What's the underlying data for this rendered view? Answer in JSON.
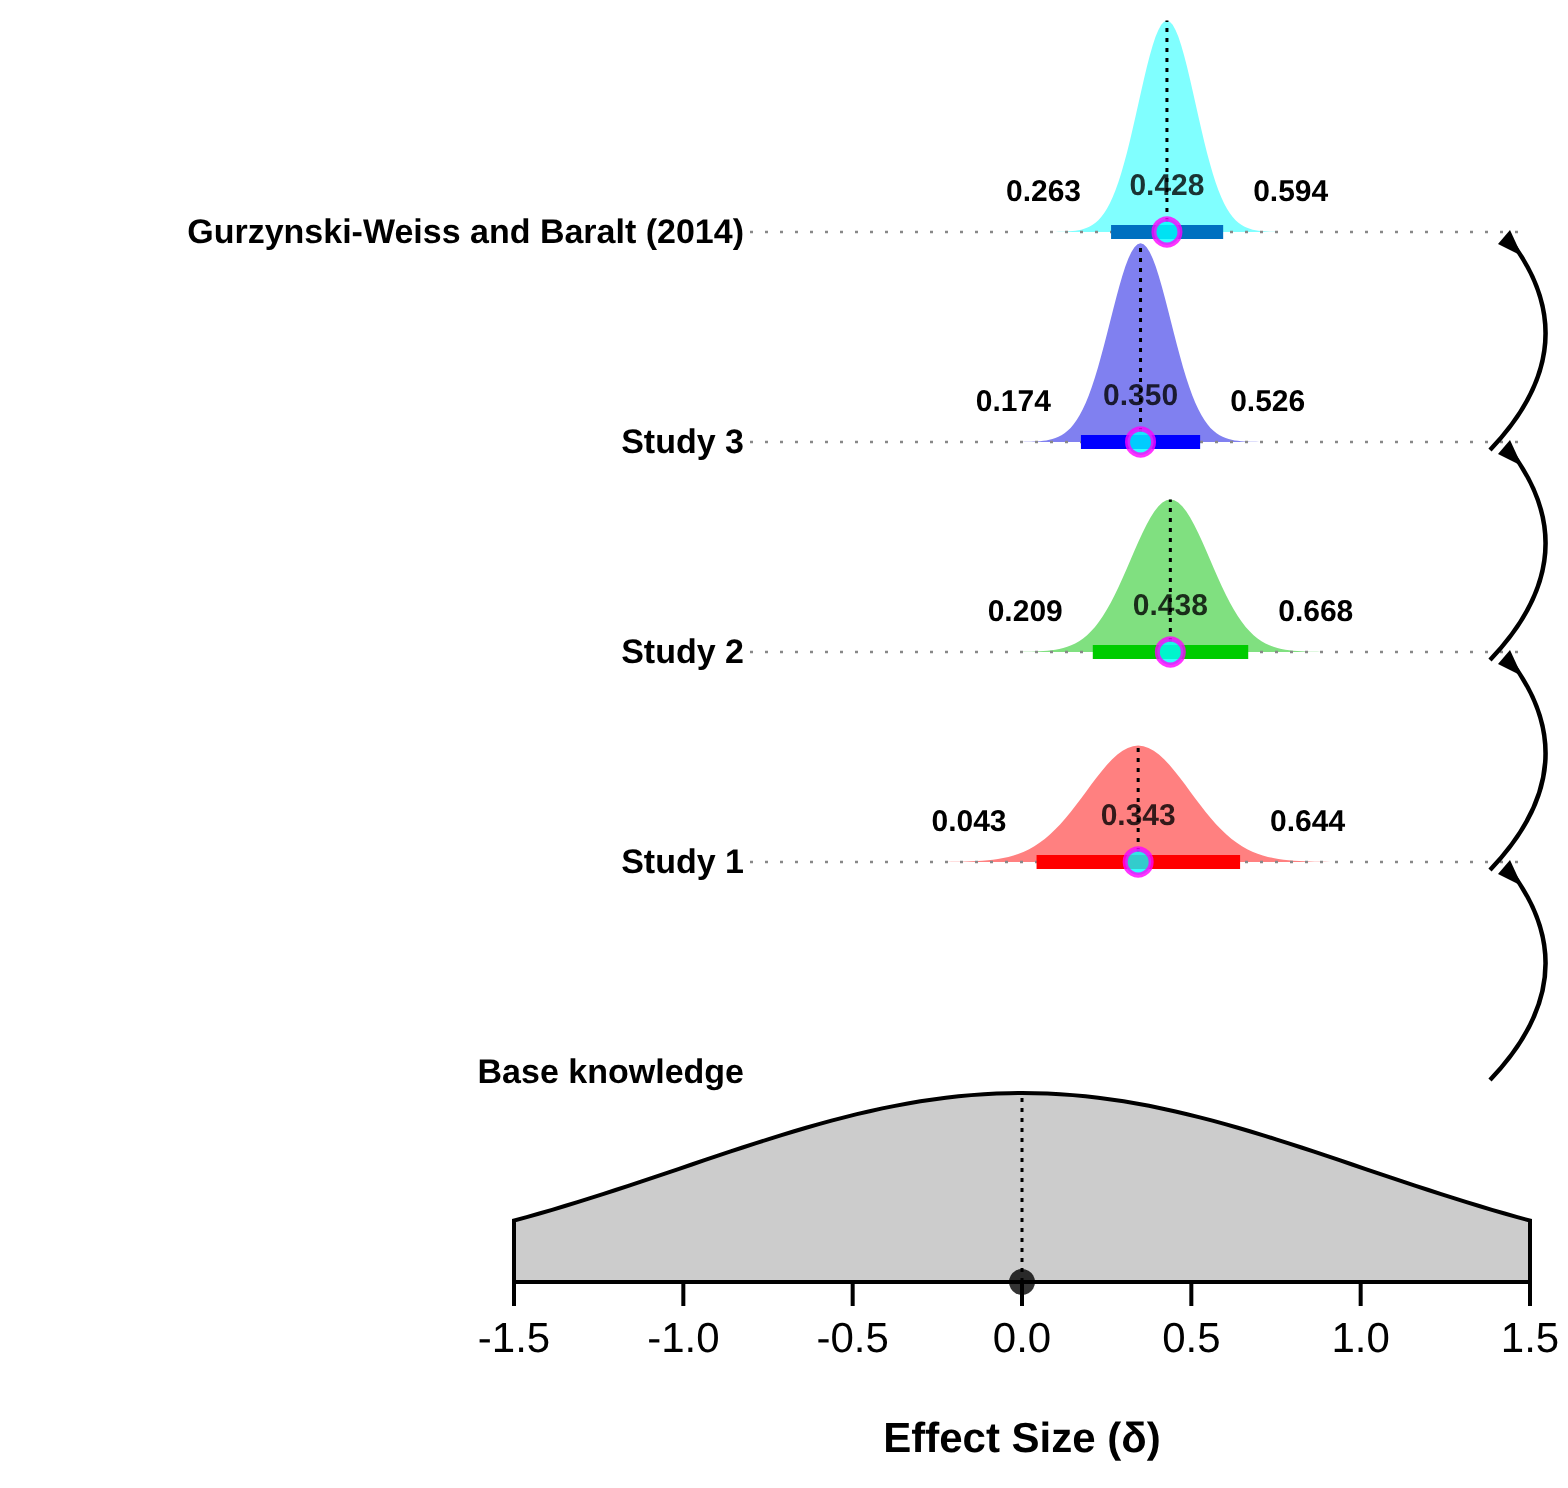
{
  "chart_data": {
    "type": "scatter",
    "orientation": "horizontal",
    "xlabel": "Effect Size (δ)",
    "grid": "y",
    "categories": [
      "Gurzynski-Weiss and Baralt (2014)",
      "Study 3",
      "Study 2",
      "Study 1",
      "Base knowledge",
      null
    ],
    "values": [
      0.428,
      0.35,
      0.438,
      0.343,
      null,
      0
    ],
    "errors": [
      [
        0.263,
        0.594
      ],
      [
        0.174,
        0.526
      ],
      [
        0.209,
        0.668
      ],
      [
        0.043,
        0.644
      ],
      null,
      null
    ],
    "colors": [
      "#00ffff",
      "#00ffff",
      "#00ffff",
      "#00ffff",
      null,
      "#000000"
    ],
    "value_labels": [
      "0.428",
      "0.350",
      "0.438",
      "0.343",
      null,
      null
    ],
    "xlim": [
      -1.5,
      1.5
    ],
    "xticks": [
      -1.5,
      {
        "value": -1.0,
        "label": "-1.0"
      },
      -0.5,
      {
        "value": 0,
        "label": "0.0"
      },
      0.5,
      {
        "value": 1.0,
        "label": "1.0"
      },
      1.5
    ],
    "annotations": [
      {
        "text": "0.263",
        "x": 0.263,
        "y": "Gurzynski-Weiss and Baralt (2014)"
      },
      {
        "text": "0.594",
        "x": 0.594,
        "y": "Gurzynski-Weiss and Baralt (2014)"
      },
      {
        "text": "0.174",
        "x": 0.174,
        "y": "Study 3"
      },
      {
        "text": "0.526",
        "x": 0.526,
        "y": "Study 3"
      },
      {
        "text": "0.209",
        "x": 0.209,
        "y": "Study 2"
      },
      {
        "text": "0.668",
        "x": 0.668,
        "y": "Study 2"
      },
      {
        "text": "0.043",
        "x": 0.043,
        "y": "Study 1"
      },
      {
        "text": "0.644",
        "x": 0.644,
        "y": "Study 1"
      }
    ]
  }
}
